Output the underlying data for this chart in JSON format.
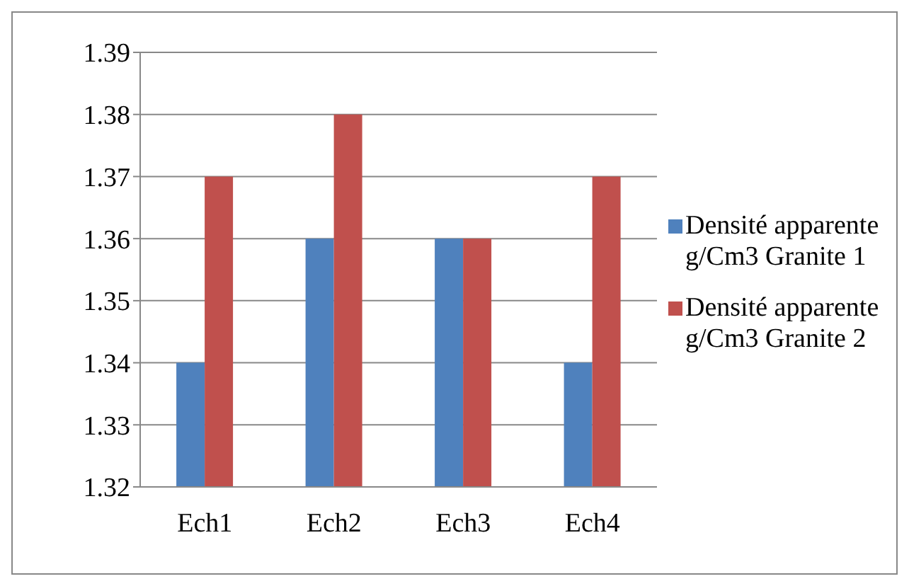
{
  "chart_data": {
    "type": "bar",
    "categories": [
      "Ech1",
      "Ech2",
      "Ech3",
      "Ech4"
    ],
    "series": [
      {
        "name": "Densité apparente g/Cm3 Granite 1",
        "color": "#4f81bd",
        "values": [
          1.34,
          1.36,
          1.36,
          1.34
        ]
      },
      {
        "name": "Densité apparente g/Cm3 Granite 2",
        "color": "#c0504d",
        "values": [
          1.37,
          1.38,
          1.36,
          1.37
        ]
      }
    ],
    "ylim": [
      1.32,
      1.39
    ],
    "yticks": [
      1.32,
      1.33,
      1.34,
      1.35,
      1.36,
      1.37,
      1.38,
      1.39
    ],
    "grid": "y",
    "legend": "right"
  }
}
